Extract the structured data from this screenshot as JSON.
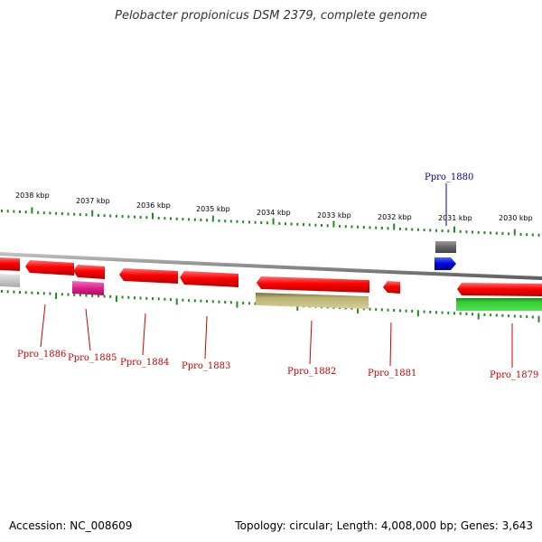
{
  "title": "Pelobacter propionicus DSM 2379, complete genome",
  "footer": {
    "accession": "Accession: NC_008609",
    "summary": "Topology: circular; Length: 4,008,000 bp; Genes: 3,643"
  },
  "colors": {
    "backbone": "#8c8c8c",
    "ticks": "#228b22",
    "gene_red": "#ff0000",
    "gene_blue": "#0000cc",
    "gene_gray": "#6e6e6e",
    "gene_lightgray": "#cfcfcf",
    "gene_magenta": "#e0208a",
    "gene_khaki": "#b8b070",
    "gene_green": "#33cc33",
    "label_red": "#cc0000",
    "label_blue": "#000099"
  },
  "scale_labels": [
    "2038 kbp",
    "2037 kbp",
    "2036 kbp",
    "2035 kbp",
    "2034 kbp",
    "2033 kbp",
    "2032 kbp",
    "2031 kbp",
    "2030 kbp"
  ],
  "gene_labels": [
    {
      "name": "Ppro_1886",
      "color": "#cc0000"
    },
    {
      "name": "Ppro_1885",
      "color": "#cc0000"
    },
    {
      "name": "Ppro_1884",
      "color": "#cc0000"
    },
    {
      "name": "Ppro_1883",
      "color": "#cc0000"
    },
    {
      "name": "Ppro_1882",
      "color": "#cc0000"
    },
    {
      "name": "Ppro_1881",
      "color": "#cc0000"
    },
    {
      "name": "Ppro_1879",
      "color": "#cc0000"
    },
    {
      "name": "Ppro_1880",
      "color": "#000099"
    }
  ]
}
